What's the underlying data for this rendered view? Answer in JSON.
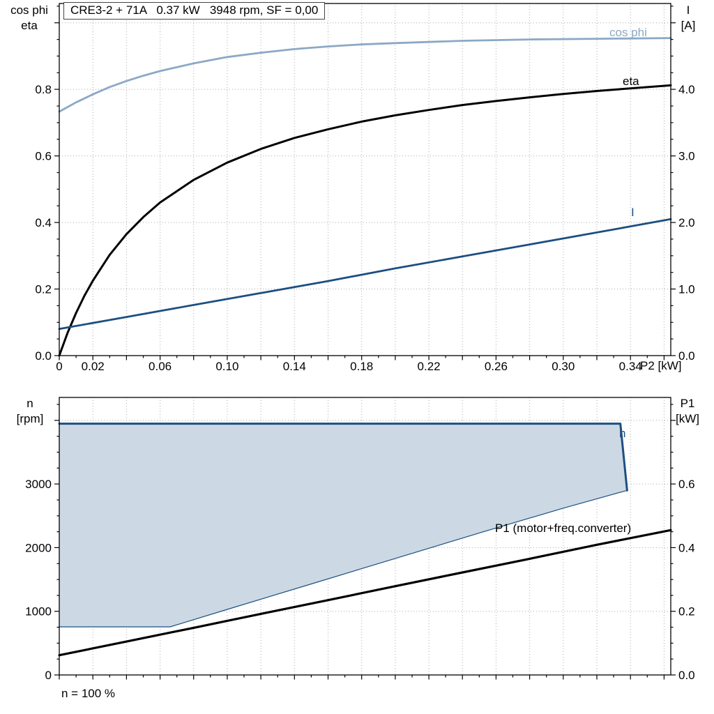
{
  "labels": {
    "top_left_axis_1": "cos phi",
    "top_left_axis_2": "eta",
    "top_right_axis_1": "I",
    "top_right_axis_2": "[A]",
    "bottom_left_axis_1": "n",
    "bottom_left_axis_2": "[rpm]",
    "bottom_right_axis_1": "P1",
    "bottom_right_axis_2": "[kW]",
    "x_axis_unit": "P2 [kW]",
    "footer": "n = 100 %"
  },
  "colors": {
    "dark_blue": "#1c4f80",
    "light_blue": "#8ca8c6",
    "region_fill": "#ccd8e4",
    "black": "#000000"
  },
  "chart_data": [
    {
      "id": "motor-performance",
      "type": "line",
      "title": "CRE3-2 + 71A   0.37 kW   3948 rpm, SF = 0,00",
      "x_label": "P2 [kW]",
      "x_range": [
        0,
        0.364
      ],
      "x_grid_step": 0.02,
      "x_tick_values": [
        0,
        0.02,
        0.06,
        0.1,
        0.14,
        0.18,
        0.22,
        0.26,
        0.3,
        0.34
      ],
      "x_tick_labels": [
        "0",
        "0.02",
        "0.06",
        "0.10",
        "0.14",
        "0.18",
        "0.22",
        "0.26",
        "0.30",
        "0.34"
      ],
      "left_axis": {
        "label": "cos phi, eta",
        "range": [
          0,
          1.058
        ],
        "tick_values": [
          0,
          0.2,
          0.4,
          0.6,
          0.8
        ],
        "tick_labels": [
          "0.0",
          "0.2",
          "0.4",
          "0.6",
          "0.8"
        ],
        "minor_step": 0.05
      },
      "right_axis": {
        "label": "I [A]",
        "range": [
          0,
          5.29
        ],
        "tick_values": [
          0,
          1,
          2,
          3,
          4
        ],
        "tick_labels": [
          "0.0",
          "1.0",
          "2.0",
          "3.0",
          "4.0"
        ],
        "minor_step": 0.25
      },
      "series": [
        {
          "name": "cos phi",
          "axis": "left",
          "color": "#8ca8c6",
          "width": 2.8,
          "x": [
            0,
            0.01,
            0.02,
            0.03,
            0.04,
            0.05,
            0.06,
            0.08,
            0.1,
            0.12,
            0.14,
            0.16,
            0.18,
            0.2,
            0.24,
            0.28,
            0.32,
            0.364
          ],
          "y": [
            0.733,
            0.761,
            0.785,
            0.807,
            0.825,
            0.841,
            0.855,
            0.878,
            0.897,
            0.91,
            0.921,
            0.929,
            0.935,
            0.939,
            0.946,
            0.95,
            0.952,
            0.954
          ]
        },
        {
          "name": "eta",
          "axis": "left",
          "color": "#000000",
          "width": 3,
          "x": [
            0,
            0.005,
            0.01,
            0.015,
            0.02,
            0.03,
            0.04,
            0.05,
            0.06,
            0.08,
            0.1,
            0.12,
            0.14,
            0.16,
            0.18,
            0.2,
            0.22,
            0.24,
            0.26,
            0.28,
            0.3,
            0.32,
            0.34,
            0.364
          ],
          "y": [
            0,
            0.069,
            0.128,
            0.18,
            0.225,
            0.303,
            0.365,
            0.416,
            0.46,
            0.528,
            0.58,
            0.621,
            0.654,
            0.68,
            0.703,
            0.722,
            0.738,
            0.753,
            0.765,
            0.776,
            0.786,
            0.795,
            0.803,
            0.812
          ]
        },
        {
          "name": "I",
          "axis": "right",
          "color": "#1c4f80",
          "width": 2.8,
          "x": [
            0,
            0.04,
            0.08,
            0.12,
            0.16,
            0.2,
            0.24,
            0.28,
            0.32,
            0.364
          ],
          "y": [
            0.4,
            0.58,
            0.76,
            0.94,
            1.12,
            1.31,
            1.49,
            1.67,
            1.85,
            2.05
          ]
        }
      ]
    },
    {
      "id": "speed-power",
      "type": "line+area",
      "x_range": [
        0,
        0.364
      ],
      "x_grid_step": 0.02,
      "left_axis": {
        "label": "n [rpm]",
        "range": [
          0,
          4360
        ],
        "tick_values": [
          0,
          1000,
          2000,
          3000
        ],
        "tick_labels": [
          "0",
          "1000",
          "2000",
          "3000"
        ],
        "minor_step": 250
      },
      "right_axis": {
        "label": "P1 [kW]",
        "range": [
          0,
          0.872
        ],
        "tick_values": [
          0,
          0.2,
          0.4,
          0.6
        ],
        "tick_labels": [
          "0.0",
          "0.2",
          "0.4",
          "0.6"
        ],
        "minor_step": 0.05
      },
      "region": {
        "name": "speed operating range",
        "fill": "#ccd8e4",
        "points_x": [
          0,
          0.334,
          0.338,
          0.3,
          0.25,
          0.2,
          0.15,
          0.1,
          0.066,
          0
        ],
        "points_y": [
          3948,
          3948,
          2900,
          2620,
          2230,
          1830,
          1430,
          1030,
          756,
          756
        ]
      },
      "series": [
        {
          "name": "n lower limit",
          "axis": "left",
          "color": "#1c4f80",
          "width": 1.2,
          "x": [
            0,
            0.066,
            0.1,
            0.15,
            0.2,
            0.25,
            0.3,
            0.338
          ],
          "y": [
            756,
            756,
            1030,
            1430,
            1830,
            2230,
            2620,
            2900
          ]
        },
        {
          "name": "n",
          "axis": "left",
          "color": "#1c4f80",
          "width": 3,
          "x": [
            0,
            0.334,
            0.338
          ],
          "y": [
            3948,
            3948,
            2900
          ]
        },
        {
          "name": "P1 (motor+freq.converter)",
          "axis": "right",
          "color": "#000000",
          "width": 3.2,
          "x": [
            0,
            0.04,
            0.08,
            0.12,
            0.16,
            0.2,
            0.24,
            0.28,
            0.32,
            0.364
          ],
          "y": [
            0.062,
            0.105,
            0.148,
            0.192,
            0.235,
            0.279,
            0.322,
            0.365,
            0.409,
            0.455
          ]
        }
      ]
    }
  ]
}
